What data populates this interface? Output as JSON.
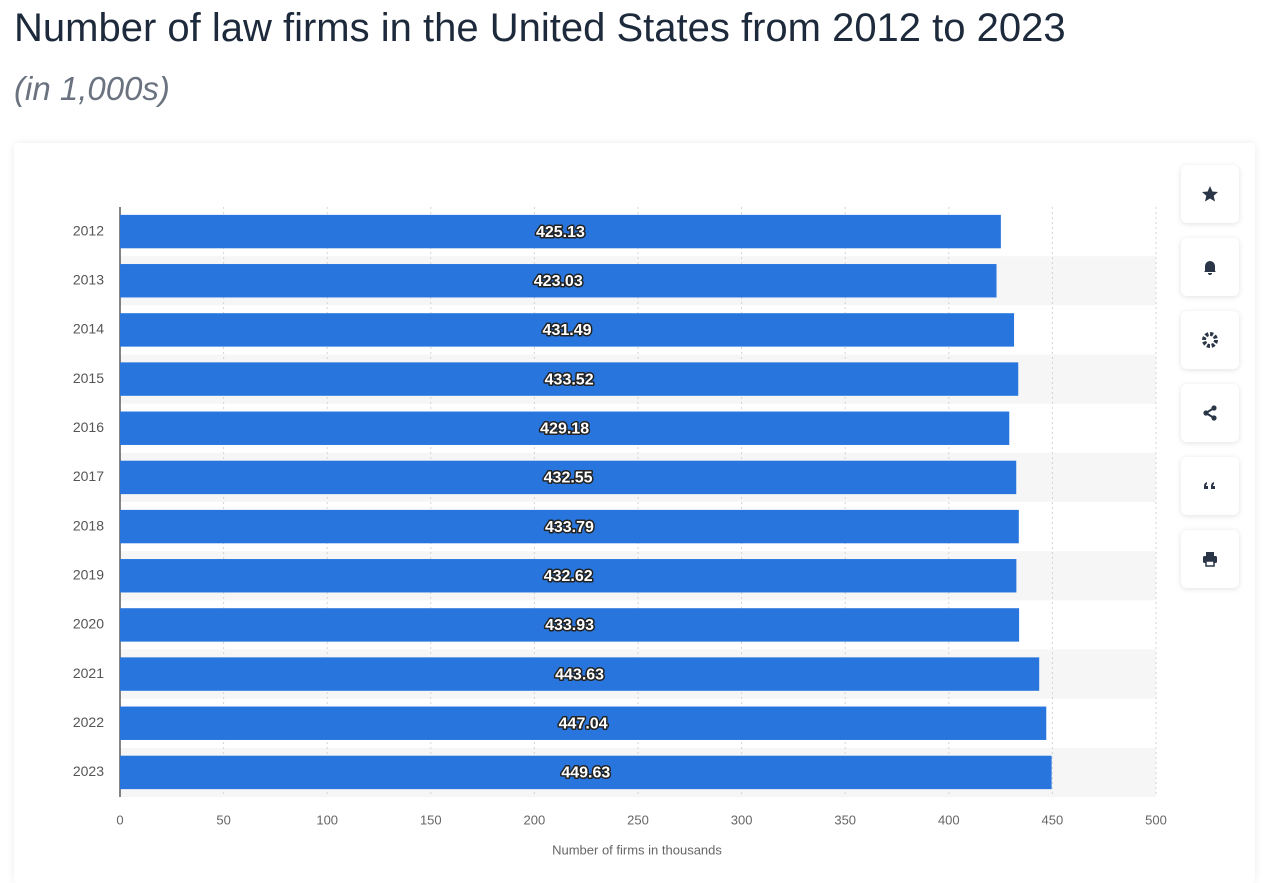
{
  "chart_data": {
    "type": "hbar",
    "title": "Number of law firms in the United States from 2012 to 2023",
    "subtitle": "(in 1,000s)",
    "x_label": "Number of firms in thousands",
    "categories": [
      "2012",
      "2013",
      "2014",
      "2015",
      "2016",
      "2017",
      "2018",
      "2019",
      "2020",
      "2021",
      "2022",
      "2023"
    ],
    "values": [
      425.13,
      423.03,
      431.49,
      433.52,
      429.18,
      432.55,
      433.79,
      432.62,
      433.93,
      443.63,
      447.04,
      449.63
    ],
    "color": "#2876dd",
    "xlim": [
      0,
      500
    ],
    "xticks": [
      0,
      50,
      100,
      150,
      200,
      250,
      300,
      350,
      400,
      450,
      500
    ],
    "grid": true
  }
}
